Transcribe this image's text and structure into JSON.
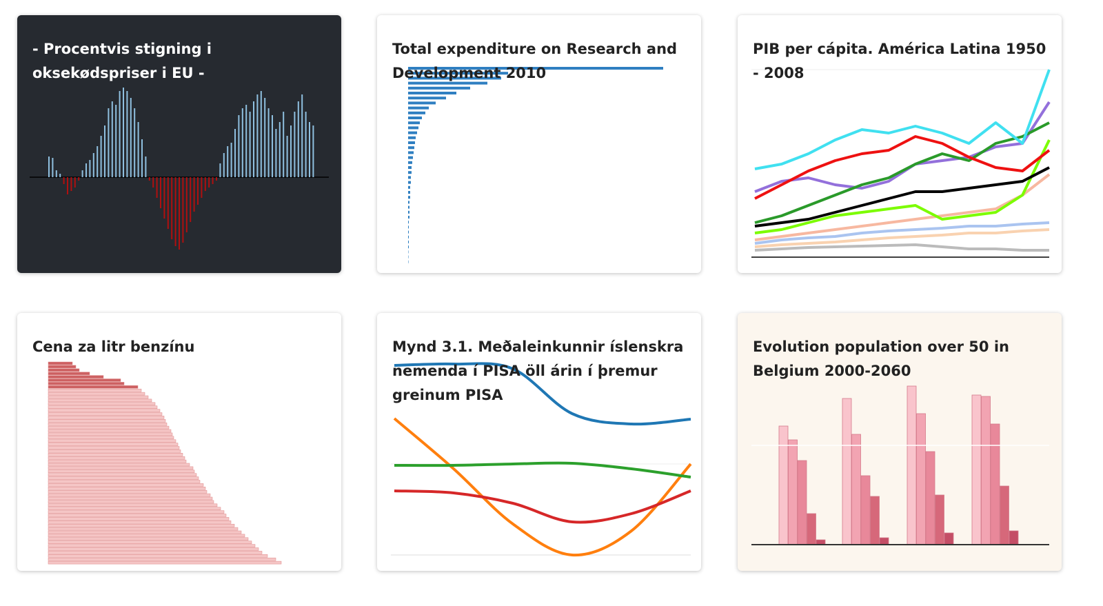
{
  "cards": [
    {
      "title": "- Procentvis stigning i oksekødspriser i EU -",
      "chart": {
        "type": "diverging",
        "colors": [
          "#8fc0e0",
          "#b01010"
        ],
        "values": [
          30,
          28,
          10,
          5,
          -10,
          -25,
          -20,
          -15,
          -5,
          10,
          20,
          25,
          35,
          45,
          60,
          75,
          100,
          110,
          105,
          125,
          130,
          125,
          115,
          100,
          80,
          55,
          30,
          -5,
          -15,
          -30,
          -45,
          -60,
          -75,
          -90,
          -100,
          -105,
          -95,
          -80,
          -65,
          -50,
          -40,
          -30,
          -20,
          -15,
          -10,
          -5,
          20,
          35,
          45,
          50,
          70,
          90,
          100,
          105,
          95,
          110,
          120,
          125,
          115,
          100,
          90,
          70,
          80,
          95,
          60,
          75,
          95,
          110,
          120,
          95,
          80,
          75
        ]
      }
    },
    {
      "title": "Total expenditure on Research and Development 2010",
      "chart": {
        "type": "hbar",
        "series": [
          {
            "color": "#2f7fc1",
            "values": [
              370,
              145,
              135,
              115,
              90,
              70,
              55,
              40,
              30,
              25,
              20,
              17,
              15,
              13,
              11,
              10,
              9,
              8,
              7,
              6,
              5,
              5,
              4,
              4,
              3,
              3,
              3,
              2,
              2,
              2,
              2,
              1,
              1,
              1,
              1,
              1,
              1,
              0.5,
              0.5,
              0.5
            ]
          }
        ]
      }
    },
    {
      "title": "PIB per cápita. América Latina 1950 - 2008",
      "chart": {
        "type": "line",
        "series": [
          {
            "color": "#f7b8a0",
            "values": [
              25,
              30,
              35,
              40,
              45,
              50,
              55,
              60,
              65,
              70,
              90,
              120
            ]
          },
          {
            "color": "#aac4f0",
            "values": [
              20,
              25,
              28,
              30,
              35,
              38,
              40,
              42,
              45,
              45,
              48,
              50
            ]
          },
          {
            "color": "#f9d2b0",
            "values": [
              15,
              18,
              20,
              22,
              25,
              28,
              30,
              32,
              35,
              35,
              38,
              40
            ]
          },
          {
            "color": "#bbbbbb",
            "values": [
              10,
              12,
              14,
              15,
              16,
              17,
              18,
              15,
              12,
              12,
              10,
              10
            ]
          },
          {
            "color": "#7cfc00",
            "values": [
              35,
              40,
              50,
              60,
              65,
              70,
              75,
              55,
              60,
              65,
              90,
              170
            ]
          },
          {
            "color": "#9370db",
            "values": [
              95,
              110,
              115,
              105,
              100,
              110,
              135,
              140,
              145,
              160,
              165,
              225
            ]
          },
          {
            "color": "#2a9a2a",
            "values": [
              50,
              60,
              75,
              90,
              105,
              115,
              135,
              150,
              140,
              165,
              175,
              195
            ]
          },
          {
            "color": "#000000",
            "values": [
              45,
              50,
              55,
              65,
              75,
              85,
              95,
              95,
              100,
              105,
              110,
              130
            ]
          },
          {
            "color": "#ee1111",
            "values": [
              85,
              105,
              125,
              140,
              150,
              155,
              175,
              165,
              145,
              130,
              125,
              155
            ]
          },
          {
            "color": "#40e0f0",
            "values": [
              128,
              135,
              150,
              170,
              185,
              180,
              190,
              180,
              165,
              195,
              165,
              272
            ]
          }
        ]
      }
    },
    {
      "title": "Cena za litr benzínu",
      "chart": {
        "type": "hbar",
        "series": [
          {
            "color": "#c0393b",
            "values": [
              35,
              40,
              45,
              60,
              80,
              105,
              110,
              130
            ]
          },
          {
            "color": "#f3b8b8",
            "values": [
              135,
              140,
              145,
              150,
              155,
              158,
              162,
              165,
              168,
              170,
              172,
              175,
              178,
              180,
              182,
              185,
              188,
              190,
              192,
              195,
              198,
              200,
              205,
              210,
              212,
              215,
              218,
              220,
              225,
              228,
              230,
              235,
              238,
              240,
              245,
              250,
              255,
              258,
              262,
              265,
              270,
              275,
              280,
              285,
              290,
              295,
              300,
              305,
              310,
              318,
              330,
              338
            ]
          }
        ]
      }
    },
    {
      "title": "Mynd 3.1. Meðaleinkunnir íslenskra nemenda í PISA öll árin í þremur greinum PISA",
      "chart": {
        "type": "smooth",
        "series": [
          {
            "color": "#1f77b4",
            "values": [
              350,
              352,
              345,
              280,
              265,
              272
            ]
          },
          {
            "color": "#ff7f0e",
            "values": [
              273,
              200,
              120,
              75,
              110,
              207
            ]
          },
          {
            "color": "#2ca02c",
            "values": [
              205,
              205,
              207,
              208,
              200,
              188
            ]
          },
          {
            "color": "#d62728",
            "values": [
              168,
              165,
              150,
              123,
              135,
              168
            ]
          }
        ]
      }
    },
    {
      "title": "Evolution population over 50 in Belgium 2000-2060",
      "chart": {
        "type": "grouped",
        "colors": [
          "#f9c4cc",
          "#f2a4b2",
          "#e8889a",
          "#d6687a",
          "#c44e66"
        ],
        "groups": [
          [
            172,
            152,
            122,
            45,
            7
          ],
          [
            212,
            160,
            100,
            70,
            10
          ],
          [
            230,
            190,
            135,
            72,
            17
          ],
          [
            217,
            215,
            175,
            85,
            20
          ]
        ]
      }
    }
  ]
}
